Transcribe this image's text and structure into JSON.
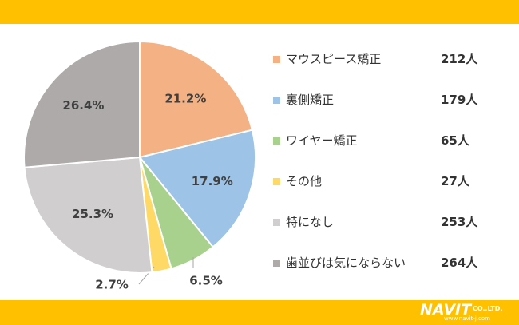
{
  "chart_data": {
    "type": "pie",
    "title": "",
    "slices": [
      {
        "label": "マウスピース矯正",
        "value": 21.2,
        "display": "21.2%",
        "count": "212人",
        "color": "#f4b183"
      },
      {
        "label": "裏側矯正",
        "value": 17.9,
        "display": "17.9%",
        "count": "179人",
        "color": "#9dc3e6"
      },
      {
        "label": "ワイヤー矯正",
        "value": 6.5,
        "display": "6.5%",
        "count": "65人",
        "color": "#a9d18e"
      },
      {
        "label": "その他",
        "value": 2.7,
        "display": "2.7%",
        "count": "27人",
        "color": "#ffd966"
      },
      {
        "label": "特になし",
        "value": 25.3,
        "display": "25.3%",
        "count": "253人",
        "color": "#d0cece"
      },
      {
        "label": "歯並びは気にならない",
        "value": 26.4,
        "display": "26.4%",
        "count": "264人",
        "color": "#aeaaaa"
      }
    ],
    "legend_placement": "right"
  },
  "colors": {
    "band": "#ffc000",
    "background": "#ffffff"
  },
  "logo": {
    "main": "NAVIT",
    "suffix": "CO.,LTD.",
    "url": "www.navit-j.com"
  }
}
